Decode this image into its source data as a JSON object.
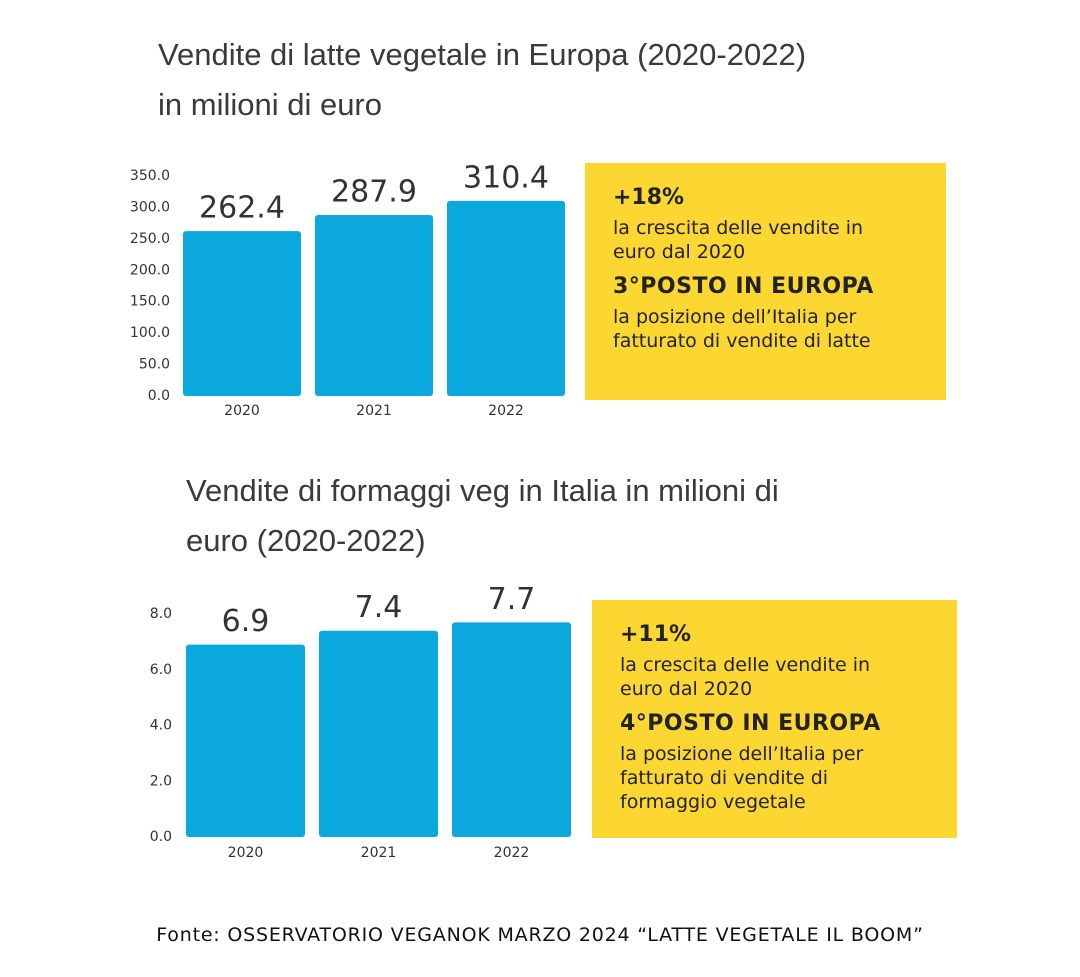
{
  "chart_data": [
    {
      "type": "bar",
      "title": "Vendite di latte vegetale in Europa (2020-2022)\nin milioni di euro",
      "categories": [
        "2020",
        "2021",
        "2022"
      ],
      "values": [
        262.4,
        287.9,
        310.4
      ],
      "color": "#0aa8dc",
      "ylim": [
        0,
        350
      ],
      "yticks": [
        {
          "value": 0,
          "label": "0.0"
        },
        {
          "value": 50,
          "label": "50.0"
        },
        {
          "value": 100,
          "label": "100.0"
        },
        {
          "value": 150,
          "label": "150.0"
        },
        {
          "value": 200,
          "label": "200.0"
        },
        {
          "value": 250,
          "label": "250.0"
        },
        {
          "value": 300,
          "label": "300.0"
        },
        {
          "value": 350,
          "label": "350.0"
        }
      ],
      "grid": false,
      "callout": {
        "color": "#fcd631",
        "stat": "+18%",
        "stat_text": "la crescita delle vendite in\neuro dal 2020",
        "rank": "3°POSTO IN EUROPA",
        "rank_text": "la posizione dell’Italia per\nfatturato di vendite di latte"
      }
    },
    {
      "type": "bar",
      "title": "Vendite di formaggi veg in Italia in milioni di\neuro (2020-2022)",
      "categories": [
        "2020",
        "2021",
        "2022"
      ],
      "values": [
        6.9,
        7.4,
        7.7
      ],
      "color": "#0aa8dc",
      "ylim": [
        0,
        8
      ],
      "yticks": [
        {
          "value": 0,
          "label": "0.0"
        },
        {
          "value": 2,
          "label": "2.0"
        },
        {
          "value": 4,
          "label": "4.0"
        },
        {
          "value": 6,
          "label": "6.0"
        },
        {
          "value": 8,
          "label": "8.0"
        }
      ],
      "grid": false,
      "callout": {
        "color": "#fcd631",
        "stat": "+11%",
        "stat_text": "la crescita delle vendite in\neuro dal 2020",
        "rank": "4°POSTO IN EUROPA",
        "rank_text": "la posizione dell’Italia per\nfatturato di vendite di\nformaggio vegetale"
      }
    }
  ],
  "source": "Fonte: OSSERVATORIO VEGANOK MARZO 2024 “LATTE VEGETALE IL BOOM”"
}
